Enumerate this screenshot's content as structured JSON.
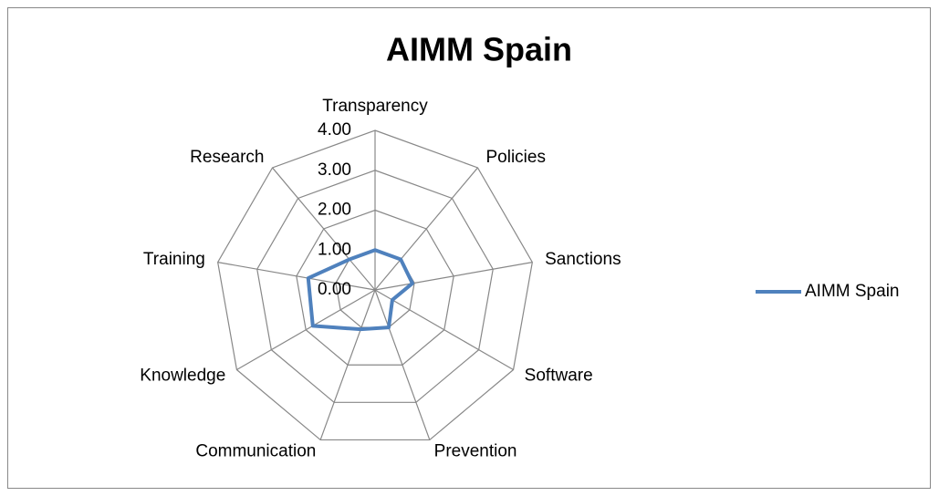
{
  "chart_data": {
    "type": "radar",
    "title": "AIMM Spain",
    "categories": [
      "Transparency",
      "Policies",
      "Sanctions",
      "Software",
      "Prevention",
      "Communication",
      "Knowledge",
      "Training",
      "Research"
    ],
    "series": [
      {
        "name": "AIMM Spain",
        "color": "#4f81bd",
        "values": [
          1.0,
          1.0,
          0.95,
          0.5,
          1.0,
          1.05,
          1.8,
          1.7,
          1.0
        ]
      }
    ],
    "ylim": [
      0,
      4
    ],
    "yticks": [
      {
        "value": 0,
        "label": "0.00"
      },
      {
        "value": 1,
        "label": "1.00"
      },
      {
        "value": 2,
        "label": "2.00"
      },
      {
        "value": 3,
        "label": "3.00"
      },
      {
        "value": 4,
        "label": "4.00"
      }
    ],
    "grid": true,
    "legend": "right"
  }
}
